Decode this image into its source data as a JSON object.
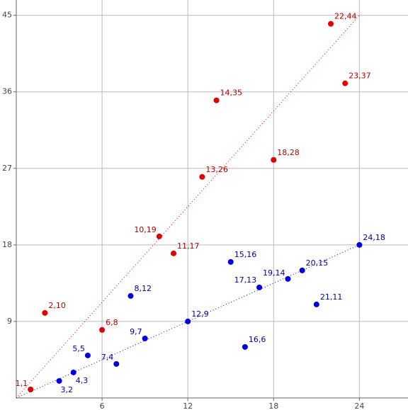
{
  "chart_data": {
    "type": "scatter",
    "xlim": [
      0,
      27.4
    ],
    "ylim": [
      0,
      46.8
    ],
    "xticks": [
      6,
      12,
      18,
      24
    ],
    "yticks": [
      9,
      18,
      27,
      36,
      45
    ],
    "grid": true,
    "series": [
      {
        "color": "#e00000",
        "label_color": "#b00000",
        "x": [
          1,
          2,
          6,
          10,
          11,
          13,
          14,
          18,
          22,
          23
        ],
        "values": [
          1,
          10,
          8,
          19,
          17,
          26,
          35,
          28,
          44,
          37
        ],
        "value_labels": [
          "1,1",
          "2,10",
          "6,8",
          "10,19",
          "11,17",
          "13,26",
          "14,35",
          "18,28",
          "22,44",
          "23,37"
        ],
        "trend": {
          "x": [
            0,
            24
          ],
          "values": [
            0,
            45
          ]
        }
      },
      {
        "color": "#0000e0",
        "label_color": "#0000a0",
        "x": [
          3,
          4,
          5,
          7,
          8,
          9,
          12,
          15,
          16,
          17,
          19,
          20,
          21,
          24
        ],
        "values": [
          2,
          3,
          5,
          4,
          12,
          7,
          9,
          16,
          6,
          13,
          14,
          15,
          11,
          18
        ],
        "value_labels": [
          "3,2",
          "4,3",
          "5,5",
          "7,4",
          "8,12",
          "9,7",
          "12,9",
          "15,16",
          "16,6",
          "17,13",
          "19,14",
          "20,15",
          "21,11",
          "24,18"
        ],
        "trend": {
          "x": [
            0,
            24
          ],
          "values": [
            0,
            18
          ]
        }
      }
    ]
  }
}
